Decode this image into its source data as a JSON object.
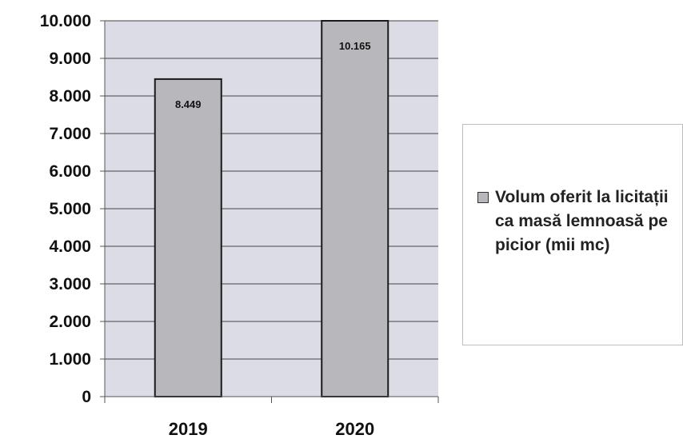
{
  "chart_data": {
    "type": "bar",
    "categories": [
      "2019",
      "2020"
    ],
    "series": [
      {
        "name": "Volum oferit la licitații ca masă lemnoasă pe picior (mii mc)",
        "values": [
          8449,
          10165
        ],
        "value_labels": [
          "8.449",
          "10.165"
        ]
      }
    ],
    "y_ticks": [
      0,
      1000,
      2000,
      3000,
      4000,
      5000,
      6000,
      7000,
      8000,
      9000,
      10000
    ],
    "y_tick_labels": [
      "0",
      "1.000",
      "2.000",
      "3.000",
      "4.000",
      "5.000",
      "6.000",
      "7.000",
      "8.000",
      "9.000",
      "10.000"
    ],
    "ylim": [
      0,
      10000
    ],
    "grid": true,
    "legend_position": "right",
    "colors": {
      "bar_fill": "#b8b8bc",
      "bar_stroke": "#1a1a1a",
      "plot_background": "#dcdce6",
      "grid": "#444444"
    }
  }
}
